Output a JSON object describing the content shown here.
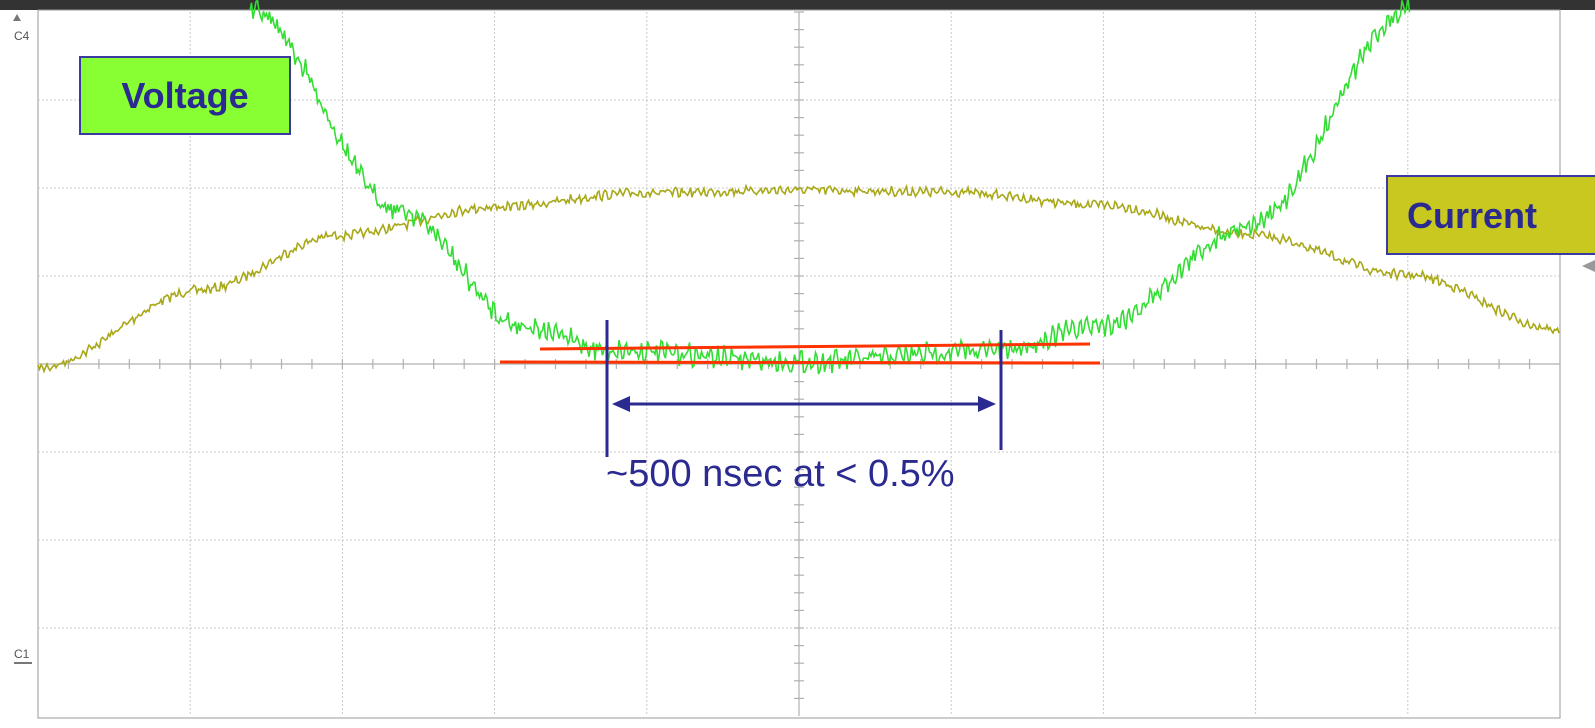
{
  "labels": {
    "voltage": "Voltage",
    "current": "Current",
    "annotation": "~500 nsec at < 0.5%",
    "channel_top": "C4",
    "channel_bottom": "C1"
  }
}
